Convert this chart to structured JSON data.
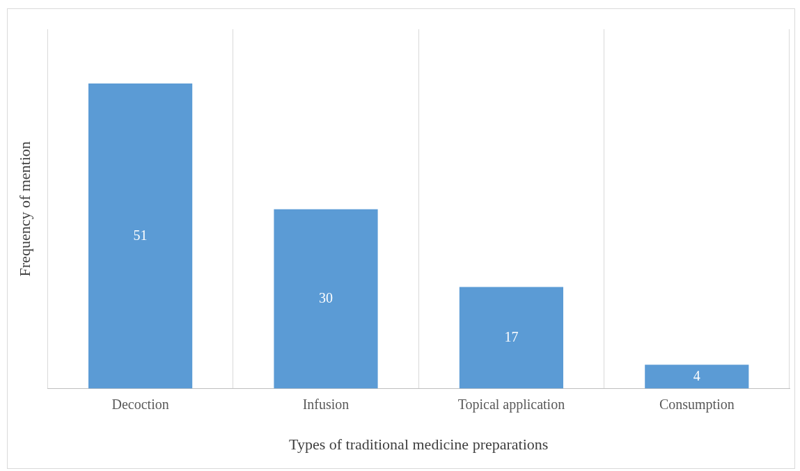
{
  "chart_data": {
    "type": "bar",
    "xlabel": "Types of traditional medicine preparations",
    "ylabel": "Frequency of mention",
    "categories": [
      "Decoction",
      "Infusion",
      "Topical application",
      "Consumption"
    ],
    "values": [
      51,
      30,
      17,
      4
    ],
    "color": "#5b9bd5",
    "data_labels": true,
    "grid": "x",
    "legend": false
  }
}
